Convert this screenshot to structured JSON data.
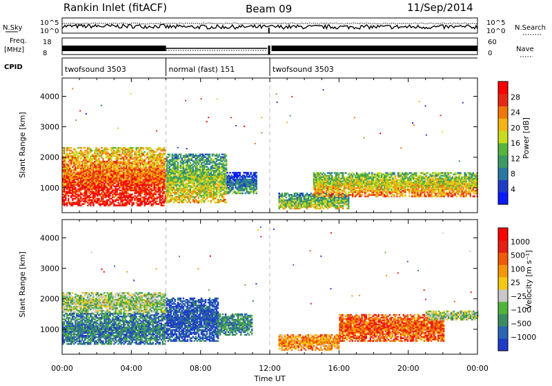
{
  "header": {
    "title": "Rankin Inlet (fitACF)",
    "beam": "Beam 09",
    "date": "11/Sep/2014"
  },
  "top_panels": {
    "nsky_label": "N.Sky",
    "nsearch_label": "N.Search",
    "noise_ticks_left": [
      "10^5",
      "10^0"
    ],
    "noise_ticks_right": [
      "10^5",
      "10^0"
    ],
    "freq_label": "Freq.",
    "freq_unit": "[MHz]",
    "freq_ticks": [
      "18",
      "8"
    ],
    "nave_label": "Nave",
    "nave_ticks": [
      "60",
      "0"
    ],
    "cpid_label": "CPID",
    "cpid_segments": [
      {
        "start": 0,
        "end": 6,
        "name": "twofsound 3503"
      },
      {
        "start": 6,
        "end": 12,
        "name": "normal (fast) 151"
      },
      {
        "start": 12,
        "end": 24,
        "name": "twofsound 3503"
      }
    ]
  },
  "chart_data": [
    {
      "type": "heatmap",
      "name": "power",
      "ylabel": "Slant Range [km]",
      "ylim": [
        180,
        4600
      ],
      "yticks": [
        "1000",
        "2000",
        "3000",
        "4000"
      ],
      "xlim": [
        0,
        24
      ],
      "colorbar_label": "Power [dB]",
      "colorbar_ticks": [
        "4",
        "8",
        "12",
        "16",
        "20",
        "24",
        "28"
      ],
      "colorbar_colors": [
        "#0a1aff",
        "#1e3cc8",
        "#2a78a0",
        "#3c9a64",
        "#58b43c",
        "#c8dc1e",
        "#f5b414",
        "#f0780a",
        "#e62814",
        "#ff0000"
      ],
      "regions": [
        {
          "t0": 0.0,
          "t1": 6.0,
          "r0": 400,
          "r1": 2300,
          "level": 0.85
        },
        {
          "t0": 6.0,
          "t1": 9.5,
          "r0": 500,
          "r1": 2100,
          "level": 0.55
        },
        {
          "t0": 9.5,
          "t1": 11.2,
          "r0": 800,
          "r1": 1500,
          "level": 0.3
        },
        {
          "t0": 12.5,
          "t1": 16.5,
          "r0": 300,
          "r1": 800,
          "level": 0.5
        },
        {
          "t0": 14.5,
          "t1": 24.0,
          "r0": 700,
          "r1": 1500,
          "level": 0.65
        }
      ]
    },
    {
      "type": "heatmap",
      "name": "velocity",
      "ylabel": "Slant Range [km]",
      "ylim": [
        180,
        4600
      ],
      "yticks": [
        "1000",
        "2000",
        "3000",
        "4000"
      ],
      "xlim": [
        0,
        24
      ],
      "xticks": [
        "00:00",
        "04:00",
        "08:00",
        "12:00",
        "16:00",
        "20:00",
        "00:00"
      ],
      "xlabel": "Time UT",
      "colorbar_label": "Velocity [m s⁻¹]",
      "colorbar_ticks": [
        "1000",
        "500",
        "100",
        "25",
        "−25",
        "−100",
        "−500",
        "−1000"
      ],
      "colorbar_colors": [
        "#1e3cc8",
        "#2a64b4",
        "#3c8c64",
        "#50b43c",
        "#c8c8c8",
        "#f5c814",
        "#f5960a",
        "#f05a0a",
        "#e61e14",
        "#ff0000"
      ],
      "regions": [
        {
          "t0": 0.0,
          "t1": 6.0,
          "r0": 1500,
          "r1": 2200,
          "level": 0.42
        },
        {
          "t0": 0.0,
          "t1": 6.0,
          "r0": 500,
          "r1": 1500,
          "level": 0.2
        },
        {
          "t0": 6.0,
          "t1": 9.0,
          "r0": 600,
          "r1": 2000,
          "level": 0.1
        },
        {
          "t0": 9.0,
          "t1": 11.0,
          "r0": 800,
          "r1": 1500,
          "level": 0.25
        },
        {
          "t0": 12.5,
          "t1": 16.0,
          "r0": 300,
          "r1": 800,
          "level": 0.65
        },
        {
          "t0": 16.0,
          "t1": 22.0,
          "r0": 600,
          "r1": 1500,
          "level": 0.75
        },
        {
          "t0": 21.0,
          "t1": 24.0,
          "r0": 1300,
          "r1": 1600,
          "level": 0.42
        }
      ]
    }
  ]
}
